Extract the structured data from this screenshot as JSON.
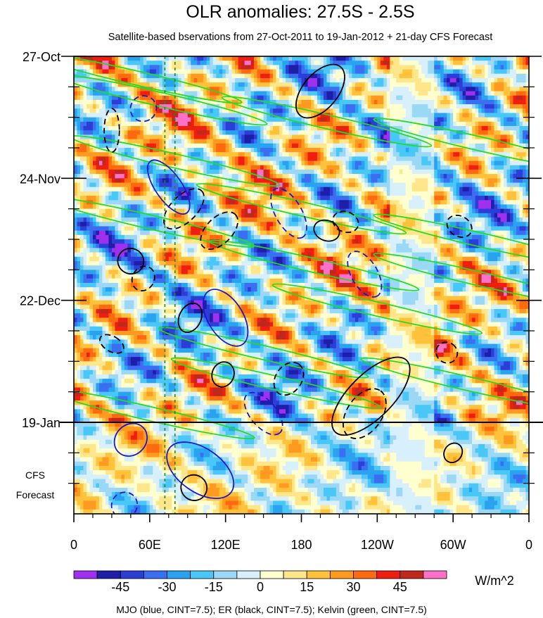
{
  "chart_data": {
    "type": "heatmap",
    "title": "OLR anomalies: 27.5S - 2.5S",
    "subtitle": "Satellite-based bservations from 27-Oct-2011 to 19-Jan-2012 + 21-day CFS Forecast",
    "xlabel": "",
    "ylabel": "",
    "x_ticks": [
      "0",
      "60E",
      "120E",
      "180",
      "120W",
      "60W",
      "0"
    ],
    "x_tick_lon": [
      0,
      60,
      120,
      180,
      240,
      300,
      360
    ],
    "xlim": [
      0,
      360
    ],
    "y_ticks": [
      "27-Oct",
      "24-Nov",
      "22-Dec",
      "19-Jan"
    ],
    "y_tick_day": [
      0,
      28,
      56,
      84
    ],
    "ylim_days": [
      0,
      105
    ],
    "observation_end": "19-Jan",
    "forecast_label": [
      "CFS",
      "Forecast"
    ],
    "reference_lon": [
      72,
      80
    ],
    "colorbar": {
      "unit": "W/m^2",
      "tick_labels": [
        "-45",
        "-30",
        "-15",
        "0",
        "15",
        "30",
        "45"
      ],
      "tick_values": [
        -45,
        -30,
        -15,
        0,
        15,
        30,
        45
      ],
      "levels": [
        -60,
        -52.5,
        -45,
        -37.5,
        -30,
        -22.5,
        -15,
        -7.5,
        0,
        7.5,
        15,
        22.5,
        30,
        37.5,
        45,
        52.5,
        60
      ],
      "colors": [
        "#a030f0",
        "#1e1ea8",
        "#2b3fd6",
        "#3c6ef2",
        "#2aa2f0",
        "#49c8f8",
        "#9bd8f5",
        "#d8f0fb",
        "#ffffd0",
        "#ffe68a",
        "#ffc23a",
        "#ff9a20",
        "#ff6a10",
        "#f01e10",
        "#c0281e",
        "#ff70c8"
      ]
    },
    "contour_legend": "MJO (blue, CINT=7.5); ER (black, CINT=7.5); Kelvin (green, CINT=7.5)",
    "series": [
      {
        "name": "MJO",
        "color": "#1a1acc"
      },
      {
        "name": "ER",
        "color": "#000000"
      },
      {
        "name": "Kelvin",
        "color": "#22dd22"
      }
    ]
  }
}
